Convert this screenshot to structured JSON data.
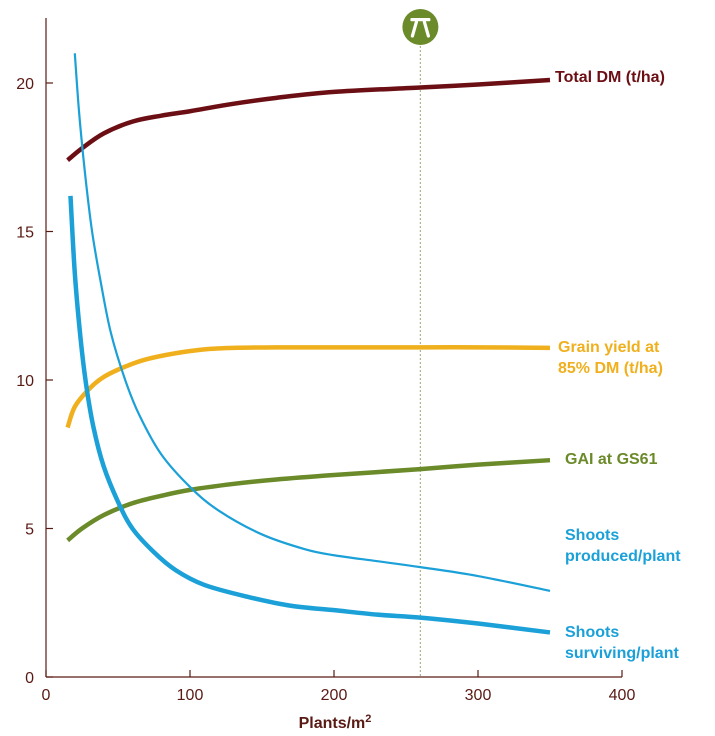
{
  "chart_data": {
    "type": "line",
    "xlabel": "Plants/m",
    "xlabel_sup": "2",
    "xlim": [
      0,
      400
    ],
    "ylim": [
      0,
      22
    ],
    "xticks": [
      0,
      100,
      200,
      300,
      400
    ],
    "yticks": [
      0,
      5,
      10,
      15,
      20
    ],
    "grid": false,
    "marker": {
      "x": 260,
      "icon": "drilling-icon",
      "color": "#6b8a2a"
    },
    "series": [
      {
        "name_lines": [
          "Total DM (t/ha)"
        ],
        "color": "#6b0f14",
        "width": 4.5,
        "x": [
          15,
          25,
          40,
          60,
          80,
          100,
          130,
          160,
          200,
          260,
          300,
          350
        ],
        "y": [
          17.4,
          17.8,
          18.3,
          18.7,
          18.9,
          19.05,
          19.3,
          19.5,
          19.7,
          19.85,
          19.95,
          20.1
        ]
      },
      {
        "name_lines": [
          "Grain yield at",
          "85% DM (t/ha)"
        ],
        "color": "#f0b01e",
        "width": 4.5,
        "x": [
          15,
          20,
          30,
          40,
          55,
          70,
          90,
          110,
          130,
          160,
          200,
          260,
          300,
          350
        ],
        "y": [
          8.4,
          9.1,
          9.7,
          10.1,
          10.45,
          10.7,
          10.9,
          11.03,
          11.08,
          11.1,
          11.1,
          11.1,
          11.1,
          11.08
        ]
      },
      {
        "name_lines": [
          "GAI at GS61"
        ],
        "color": "#6b8a2a",
        "width": 4.5,
        "x": [
          15,
          25,
          40,
          60,
          80,
          100,
          130,
          160,
          200,
          260,
          300,
          350
        ],
        "y": [
          4.6,
          5.0,
          5.45,
          5.85,
          6.1,
          6.3,
          6.5,
          6.65,
          6.8,
          7.0,
          7.15,
          7.3
        ]
      },
      {
        "name_lines": [
          "Shoots",
          "produced/plant"
        ],
        "color": "#1ba0d8",
        "width": 2.2,
        "x": [
          20,
          23,
          27,
          32,
          38,
          45,
          55,
          65,
          80,
          100,
          120,
          150,
          180,
          200,
          230,
          260,
          300,
          350
        ],
        "y": [
          21.0,
          19.0,
          17.0,
          15.0,
          13.3,
          11.6,
          10.0,
          8.8,
          7.5,
          6.4,
          5.6,
          4.8,
          4.3,
          4.1,
          3.9,
          3.7,
          3.4,
          2.9
        ]
      },
      {
        "name_lines": [
          "Shoots",
          "surviving/plant"
        ],
        "color": "#1ba0d8",
        "width": 4.5,
        "x": [
          17,
          20,
          24,
          28,
          33,
          40,
          50,
          60,
          75,
          90,
          110,
          140,
          170,
          200,
          230,
          260,
          300,
          350
        ],
        "y": [
          16.2,
          13.6,
          11.4,
          9.8,
          8.4,
          7.1,
          5.9,
          5.0,
          4.2,
          3.6,
          3.1,
          2.7,
          2.4,
          2.25,
          2.1,
          2.0,
          1.8,
          1.5
        ]
      }
    ]
  }
}
